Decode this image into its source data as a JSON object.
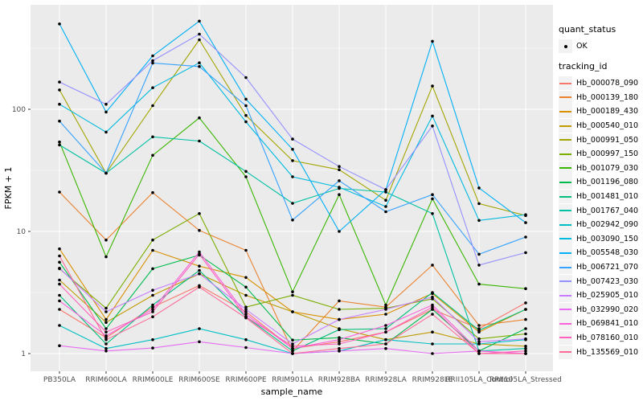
{
  "figure": {
    "x_axis_title": "sample_name",
    "y_axis_title": "FPKM + 1",
    "y_tick_labels": [
      "1",
      "10",
      "100"
    ],
    "panel_bg": "#ebebeb",
    "grid_color": "#ffffff",
    "point_color": "#000000"
  },
  "legend": {
    "quant_status_title": "quant_status",
    "quant_status_items": [
      {
        "label": "OK",
        "marker": "point"
      }
    ],
    "tracking_id_title": "tracking_id"
  },
  "chart_data": {
    "type": "line",
    "y_scale": "log10",
    "ylim": [
      1,
      710
    ],
    "y_major_ticks": [
      1,
      10,
      100
    ],
    "y_minor_ticks": [
      3.162,
      31.62,
      316.2
    ],
    "grid": "on",
    "legend_position": "right",
    "xlabel": "sample_name",
    "ylabel": "FPKM + 1",
    "categories": [
      "PB350LA",
      "RRIM600LA",
      "RRIM600LE",
      "RRIM600SE",
      "RRIM600PE",
      "RRIM901LA",
      "RRIM928BA",
      "RRIM928LA",
      "RRIM928LE",
      "RRII105LA_Control",
      "RRII105LA_Stressed"
    ],
    "series": [
      {
        "name": "Hb_000078_090",
        "color": "#F8766D",
        "values": [
          2.3,
          1.35,
          2.4,
          3.6,
          2.2,
          1.1,
          1.25,
          1.5,
          2.3,
          1.6,
          2.6
        ]
      },
      {
        "name": "Hb_000139_180",
        "color": "#EA8331",
        "values": [
          21,
          8.5,
          20.8,
          10.2,
          7.0,
          1.05,
          2.7,
          2.4,
          5.3,
          1.7,
          1.9
        ]
      },
      {
        "name": "Hb_000189_430",
        "color": "#D89000",
        "values": [
          7.2,
          1.9,
          7.0,
          5.2,
          4.2,
          2.2,
          1.9,
          2.1,
          3.1,
          1.5,
          2.3
        ]
      },
      {
        "name": "Hb_000540_010",
        "color": "#C09B00",
        "values": [
          4.0,
          1.8,
          3.0,
          4.5,
          3.0,
          2.2,
          1.6,
          1.3,
          1.5,
          1.2,
          1.15
        ]
      },
      {
        "name": "Hb_000991_050",
        "color": "#A3A500",
        "values": [
          144,
          30,
          107,
          371,
          89,
          38,
          32,
          18,
          155,
          16.9,
          13.5
        ]
      },
      {
        "name": "Hb_000997_150",
        "color": "#7CAE00",
        "values": [
          4.95,
          2.35,
          8.5,
          14,
          2.4,
          3.0,
          2.3,
          2.35,
          2.8,
          1.32,
          1.45
        ]
      },
      {
        "name": "Hb_001079_030",
        "color": "#39B600",
        "values": [
          54,
          6.2,
          42,
          85,
          28,
          3.2,
          20,
          2.5,
          18.5,
          3.7,
          3.4
        ]
      },
      {
        "name": "Hb_001196_080",
        "color": "#00BB4E",
        "values": [
          5.6,
          1.6,
          4.95,
          6.4,
          3.5,
          1.29,
          1.35,
          1.2,
          2.3,
          1.05,
          1.6
        ]
      },
      {
        "name": "Hb_001481_010",
        "color": "#00BF7D",
        "values": [
          3.0,
          1.2,
          2.5,
          4.8,
          2.0,
          1.05,
          1.57,
          1.6,
          3.16,
          1.55,
          2.3
        ]
      },
      {
        "name": "Hb_001767_040",
        "color": "#00C1A3",
        "values": [
          51,
          30,
          59.5,
          55,
          31,
          17,
          22.5,
          21,
          14,
          1.05,
          1.1
        ]
      },
      {
        "name": "Hb_002942_090",
        "color": "#00BFC4",
        "values": [
          1.7,
          1.1,
          1.3,
          1.6,
          1.3,
          1.0,
          1.05,
          1.3,
          1.2,
          1.2,
          1.3
        ]
      },
      {
        "name": "Hb_003090_150",
        "color": "#00BAE0",
        "values": [
          110,
          65,
          150,
          240,
          79,
          28,
          23,
          16,
          88,
          12.3,
          13.7
        ]
      },
      {
        "name": "Hb_005548_030",
        "color": "#00B0F6",
        "values": [
          500,
          95,
          274,
          527,
          121,
          47,
          10,
          22,
          360,
          22.7,
          11.8
        ]
      },
      {
        "name": "Hb_006721_070",
        "color": "#35A2FF",
        "values": [
          80,
          30,
          239,
          224,
          107,
          12.4,
          26,
          14.5,
          20,
          6.5,
          9.0
        ]
      },
      {
        "name": "Hb_007423_030",
        "color": "#9590FF",
        "values": [
          167,
          110,
          250,
          412,
          182,
          57,
          34,
          22,
          73,
          5.3,
          6.7
        ]
      },
      {
        "name": "Hb_025905_010",
        "color": "#C77CFF",
        "values": [
          5.0,
          2.2,
          3.3,
          4.5,
          2.3,
          1.2,
          1.9,
          2.3,
          2.9,
          1.25,
          1.32
        ]
      },
      {
        "name": "Hb_032990_020",
        "color": "#E76BF3",
        "values": [
          1.16,
          1.05,
          1.11,
          1.25,
          1.12,
          1.0,
          1.05,
          1.1,
          1.0,
          1.05,
          1.0
        ]
      },
      {
        "name": "Hb_069841_010",
        "color": "#FA62DB",
        "values": [
          2.7,
          1.4,
          2.3,
          6.8,
          2.1,
          1.1,
          1.3,
          1.7,
          2.5,
          1.05,
          1.0
        ]
      },
      {
        "name": "Hb_078160_010",
        "color": "#FF62BC",
        "values": [
          3.7,
          1.5,
          2.2,
          6.5,
          2.0,
          1.15,
          1.2,
          1.5,
          2.4,
          1.0,
          1.05
        ]
      },
      {
        "name": "Hb_135569_010",
        "color": "#FF6A98",
        "values": [
          6.3,
          1.3,
          2.0,
          3.5,
          1.96,
          1.0,
          1.1,
          1.2,
          2.1,
          1.0,
          1.0
        ]
      }
    ]
  }
}
